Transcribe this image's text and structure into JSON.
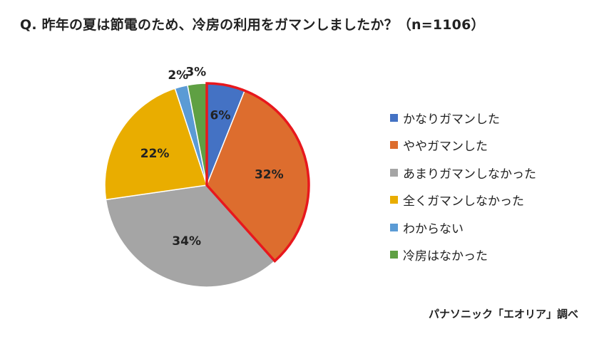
{
  "title": "Q. 昨年の夏は節電のため、冷房の利用をガマンしましたか？（n=1106）",
  "source": "パナソニック「エオリア」調べ",
  "chart_data": {
    "type": "pie",
    "title": "Q. 昨年の夏は節電のため、冷房の利用をガマンしましたか？（n=1106）",
    "n": 1106,
    "legend_position": "right",
    "highlight_color": "#e8181d",
    "highlighted_labels": [
      "かなりガマンした",
      "ややガマンした"
    ],
    "slices": [
      {
        "label": "かなりガマンした",
        "value": 6,
        "value_label": "6%",
        "color": "#4472c4"
      },
      {
        "label": "ややガマンした",
        "value": 32,
        "value_label": "32%",
        "color": "#dd6d2e"
      },
      {
        "label": "あまりガマンしなかった",
        "value": 34,
        "value_label": "34%",
        "color": "#a5a5a5"
      },
      {
        "label": "全くガマンしなかった",
        "value": 22,
        "value_label": "22%",
        "color": "#e9ad00"
      },
      {
        "label": "わからない",
        "value": 2,
        "value_label": "2%",
        "color": "#5b9bd5"
      },
      {
        "label": "冷房はなかった",
        "value": 3,
        "value_label": "3%",
        "color": "#5fa043"
      }
    ]
  }
}
